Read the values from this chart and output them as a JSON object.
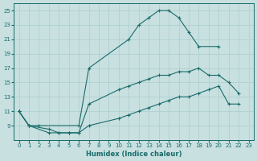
{
  "xlabel": "Humidex (Indice chaleur)",
  "bg_color": "#c8e0e0",
  "line_color": "#1a6b6b",
  "grid_color": "#b0d0d0",
  "xlim": [
    -0.5,
    23.5
  ],
  "ylim": [
    7,
    26
  ],
  "xticks": [
    0,
    1,
    2,
    3,
    4,
    5,
    6,
    7,
    8,
    9,
    10,
    11,
    12,
    13,
    14,
    15,
    16,
    17,
    18,
    19,
    20,
    21,
    22,
    23
  ],
  "yticks": [
    9,
    11,
    13,
    15,
    17,
    19,
    21,
    23,
    25
  ],
  "ytick_labels": [
    "9",
    "11",
    "13",
    "15",
    "17",
    "19",
    "21",
    "23",
    "25"
  ],
  "curve_upper_x": [
    0,
    1,
    2,
    6,
    7,
    11,
    12,
    13,
    14,
    15,
    16,
    17,
    18,
    20
  ],
  "curve_upper_y": [
    11,
    9,
    9,
    9,
    17,
    21,
    23,
    24,
    25,
    25,
    24,
    22,
    20,
    20
  ],
  "curve_mid_x": [
    0,
    1,
    3,
    4,
    5,
    6,
    7,
    10,
    11,
    12,
    13,
    14,
    15,
    16,
    17,
    18,
    19,
    20,
    21,
    22
  ],
  "curve_mid_y": [
    11,
    9,
    8,
    8,
    8,
    8,
    12,
    14,
    14.5,
    15,
    15.5,
    16,
    16,
    16.5,
    16.5,
    17,
    16,
    16,
    15,
    13.5
  ],
  "curve_low_x": [
    0,
    1,
    3,
    4,
    5,
    6,
    7,
    10,
    11,
    12,
    13,
    14,
    15,
    16,
    17,
    18,
    19,
    20,
    21,
    22
  ],
  "curve_low_y": [
    11,
    9,
    8.5,
    8,
    8,
    8,
    9,
    10,
    10.5,
    11,
    11.5,
    12,
    12.5,
    13,
    13,
    13.5,
    14,
    14.5,
    12,
    12
  ],
  "marker": "+"
}
